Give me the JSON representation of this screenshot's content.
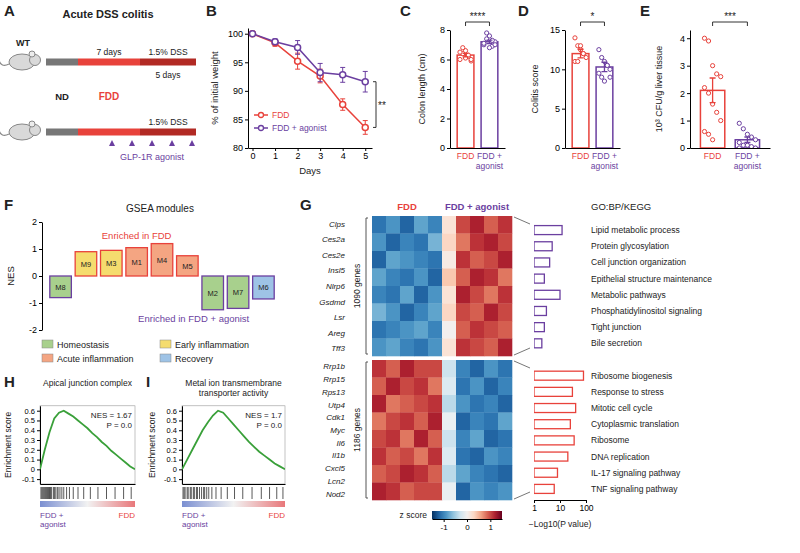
{
  "diagram": {
    "panel": "A",
    "title": "Acute DSS colitis",
    "mouse": "WT",
    "phases": [
      "ND",
      "FDD",
      "1.5% DSS"
    ],
    "durations": [
      "7 days",
      "5 days"
    ],
    "drug": "GLP-1R agonist"
  },
  "chart_data": [
    {
      "panel": "B",
      "type": "line",
      "x": [
        0,
        1,
        2,
        3,
        4,
        5
      ],
      "xlabel": "Days",
      "ylabel": "% of initial weight",
      "xlim": [
        -0.2,
        5.3
      ],
      "xticks": [
        0,
        1,
        2,
        3,
        4,
        5
      ],
      "ylim": [
        80,
        101
      ],
      "yticks": [
        80,
        85,
        90,
        95,
        100
      ],
      "legend": "bottom left",
      "annotations": [
        "**"
      ],
      "series": [
        {
          "name": "FDD",
          "color": "#e8423b",
          "marker": "circle",
          "values": [
            100,
            98.4,
            95.2,
            92.6,
            87.6,
            83.6
          ],
          "errors": [
            0,
            0.6,
            1.4,
            1.2,
            1.0,
            1.2
          ]
        },
        {
          "name": "FDD + agonist",
          "color": "#6b3fa0",
          "marker": "circle",
          "values": [
            100,
            98.6,
            97.6,
            93.2,
            92.8,
            91.6
          ],
          "errors": [
            0,
            0.5,
            1.2,
            1.6,
            1.3,
            1.8
          ]
        }
      ]
    },
    {
      "panel": "C",
      "type": "bar",
      "categories": [
        "FDD",
        "FDD + agonist"
      ],
      "values": [
        6.3,
        7.2
      ],
      "errors": [
        0.12,
        0.12
      ],
      "points": [
        [
          6.0,
          6.4,
          6.6,
          6.2,
          5.9,
          6.5,
          6.8,
          6.1,
          6.3,
          6.0
        ],
        [
          7.0,
          7.4,
          7.6,
          6.9,
          7.2,
          7.1,
          7.8,
          6.8,
          7.3,
          7.0
        ]
      ],
      "colors": [
        "#e8423b",
        "#6b3fa0"
      ],
      "ylabel": "Colon length (cm)",
      "ylim": [
        0,
        8
      ],
      "yticks": [
        0,
        2,
        4,
        6,
        8
      ],
      "annotations": [
        "****"
      ]
    },
    {
      "panel": "D",
      "type": "bar",
      "categories": [
        "FDD",
        "FDD + agonist"
      ],
      "values": [
        12,
        10.3
      ],
      "errors": [
        0.55,
        0.6
      ],
      "points": [
        [
          14,
          13,
          12.5,
          12,
          11.5,
          11,
          11,
          13,
          12
        ],
        [
          12.5,
          11.5,
          11,
          10.5,
          10,
          9.5,
          9,
          8.5,
          10.5,
          9
        ]
      ],
      "colors": [
        "#e8423b",
        "#6b3fa0"
      ],
      "ylabel": "Colitis score",
      "ylim": [
        0,
        15
      ],
      "yticks": [
        0,
        5,
        10,
        15
      ],
      "annotations": [
        "*"
      ]
    },
    {
      "panel": "E",
      "type": "bar",
      "categories": [
        "FDD",
        "FDD + agonist"
      ],
      "values": [
        2.1,
        0.3
      ],
      "errors": [
        0.45,
        0.1
      ],
      "points": [
        [
          4.0,
          3.9,
          3.0,
          2.7,
          2.6,
          2.2,
          2.0,
          1.6,
          1.3,
          1.0,
          0.6,
          0.5,
          0.3
        ],
        [
          0.9,
          0.7,
          0.5,
          0.4,
          0.3,
          0.2,
          0.1,
          0.1,
          0.05,
          0,
          0
        ]
      ],
      "colors": [
        "#e8423b",
        "#6b3fa0"
      ],
      "ylabel": "10³ CFU/g liver tissue",
      "ylim": [
        0,
        4.3
      ],
      "yticks": [
        0,
        1,
        2,
        3,
        4
      ],
      "annotations": [
        "***"
      ]
    },
    {
      "panel": "F",
      "type": "bar",
      "title": "GSEA modules",
      "categories": [
        "M8",
        "M9",
        "M3",
        "M1",
        "M4",
        "M5",
        "M2",
        "M7",
        "M6"
      ],
      "values": [
        -0.8,
        0.9,
        0.95,
        1.05,
        1.2,
        0.75,
        -1.25,
        -1.2,
        -0.85
      ],
      "colors": [
        "#a8d08d",
        "#f5dc6e",
        "#f5dc6e",
        "#f4a582",
        "#f4a582",
        "#f4a582",
        "#a8d08d",
        "#a8d08d",
        "#9ec3e6"
      ],
      "ylabel": "NES",
      "ylim": [
        -2,
        2
      ],
      "yticks": [
        -2,
        -1,
        0,
        1,
        2
      ],
      "annotations": [
        "Enriched in FDD",
        "Enriched in FDD + agonist"
      ],
      "legend": "bottom",
      "groups": [
        {
          "name": "Homeostasis",
          "color": "#a8d08d"
        },
        {
          "name": "Early inflammation",
          "color": "#f5dc6e"
        },
        {
          "name": "Acute inflammation",
          "color": "#f4a582"
        },
        {
          "name": "Recovery",
          "color": "#9ec3e6"
        }
      ]
    },
    {
      "panel": "G",
      "type": "heatmap",
      "column_groups": [
        "FDD",
        "FDD + agonist"
      ],
      "colors": [
        "#e8423b",
        "#6b3fa0"
      ],
      "row_groups": [
        "1090 genes",
        "1186 genes"
      ],
      "genes": [
        [
          "Clps",
          "Ces2a",
          "Ces2e",
          "Insl5",
          "Nlrp6",
          "Gsdmd",
          "Lsr",
          "Areg",
          "Tff3"
        ],
        [
          "Rrp1b",
          "Rrp15",
          "Rps13",
          "Utp4",
          "Cdk1",
          "Myc",
          "Il6",
          "Il1b",
          "Cxcl5",
          "Lcn2",
          "Nod2"
        ]
      ],
      "cells": [
        [
          [
            -1.1,
            -0.9,
            -1.2,
            -0.8,
            -1.0,
            0.2,
            1.0,
            1.2,
            0.9,
            1.1
          ],
          [
            -0.9,
            -1.2,
            -1.0,
            -1.1,
            -0.7,
            0.3,
            0.8,
            1.1,
            1.2,
            1.0
          ],
          [
            -1.2,
            -0.8,
            -0.9,
            -1.0,
            -1.1,
            0.1,
            1.1,
            0.9,
            1.0,
            1.2
          ],
          [
            -0.8,
            -1.0,
            -1.1,
            -0.9,
            -1.2,
            0.4,
            0.9,
            1.2,
            1.1,
            0.8
          ],
          [
            -1.0,
            -1.1,
            -0.8,
            -1.2,
            -0.9,
            0.2,
            1.2,
            1.0,
            0.8,
            1.1
          ],
          [
            -0.7,
            -0.9,
            -1.2,
            -1.0,
            -0.8,
            0.3,
            1.0,
            0.9,
            1.2,
            1.0
          ],
          [
            -1.1,
            -1.0,
            -0.9,
            -0.8,
            -1.0,
            0.0,
            0.9,
            1.1,
            1.0,
            0.9
          ],
          [
            -0.9,
            -0.8,
            -1.0,
            -1.1,
            -0.9,
            0.2,
            1.1,
            1.0,
            0.9,
            1.2
          ]
        ],
        [
          [
            1.1,
            0.9,
            1.2,
            1.0,
            1.0,
            -0.3,
            -1.0,
            -1.2,
            -0.9,
            -1.1
          ],
          [
            0.9,
            1.2,
            1.0,
            1.1,
            0.8,
            -0.2,
            -1.1,
            -0.9,
            -1.2,
            -1.0
          ],
          [
            1.2,
            0.8,
            0.9,
            1.0,
            1.1,
            -0.4,
            -0.9,
            -1.1,
            -1.0,
            -1.2
          ],
          [
            0.8,
            1.0,
            1.1,
            0.9,
            1.2,
            -0.1,
            -1.2,
            -1.0,
            -1.1,
            -0.8
          ],
          [
            1.0,
            1.1,
            0.8,
            1.2,
            0.9,
            -0.3,
            -1.0,
            -0.8,
            -1.2,
            -1.1
          ],
          [
            1.1,
            0.9,
            1.0,
            0.8,
            1.1,
            -0.2,
            -1.1,
            -1.2,
            -0.9,
            -1.0
          ],
          [
            0.9,
            1.0,
            1.2,
            1.1,
            0.9,
            -0.4,
            -0.8,
            -1.0,
            -1.1,
            -1.2
          ],
          [
            1.2,
            1.1,
            0.9,
            1.0,
            1.0,
            -0.1,
            -1.2,
            -0.9,
            -1.0,
            -0.9
          ]
        ]
      ],
      "colorbar": {
        "label": "z score",
        "range": [
          -1.5,
          1.5
        ],
        "ticks": [
          -1,
          0,
          1
        ]
      }
    },
    {
      "type": "bar",
      "orientation": "horizontal",
      "title": "GO:BP/KEGG",
      "categories": [
        "Lipid metabolic process",
        "Protein glycosylation",
        "Cell junction organization",
        "Epithelial structure maintenance",
        "Metabolic pathways",
        "Phosphatidylinositol signaling",
        "Tight junction",
        "Bile secretion",
        "Ribosome biogenesis",
        "Response to stress",
        "Mitotic cell cycle",
        "Cytoplasmic translation",
        "Ribosome",
        "DNA replication",
        "IL-17 signaling pathway",
        "TNF signaling pathway"
      ],
      "values": [
        12,
        5,
        4,
        2.5,
        10,
        3,
        2.5,
        2,
        80,
        30,
        40,
        25,
        35,
        20,
        8,
        6
      ],
      "colors": [
        "#6b3fa0",
        "#6b3fa0",
        "#6b3fa0",
        "#6b3fa0",
        "#6b3fa0",
        "#6b3fa0",
        "#6b3fa0",
        "#6b3fa0",
        "#e8423b",
        "#e8423b",
        "#e8423b",
        "#e8423b",
        "#e8423b",
        "#e8423b",
        "#e8423b",
        "#e8423b"
      ],
      "log": "x",
      "xlim": [
        1,
        100
      ],
      "xticks": [
        1,
        10,
        100
      ],
      "xlabel": "−Log10(P value)"
    },
    {
      "panel": "H",
      "type": "line",
      "title": "Apical junction complex",
      "x": [
        0,
        5,
        10,
        15,
        20,
        25,
        30,
        35,
        40,
        45,
        50,
        55,
        60,
        65,
        70,
        75,
        80,
        85,
        90,
        95,
        100
      ],
      "values": [
        0,
        0.2,
        0.38,
        0.52,
        0.58,
        0.6,
        0.57,
        0.54,
        0.5,
        0.46,
        0.42,
        0.37,
        0.33,
        0.28,
        0.24,
        0.19,
        0.15,
        0.11,
        0.07,
        0.03,
        0
      ],
      "hits": [
        1,
        2,
        3,
        4,
        5,
        6,
        7,
        8,
        9,
        10,
        11,
        12,
        14,
        15,
        16,
        18,
        19,
        21,
        23,
        25,
        28,
        31,
        35,
        40,
        46,
        53,
        61,
        70,
        79,
        88,
        96
      ],
      "color": "#3aa03a",
      "ylabel": "Enrichment score",
      "xlim": [
        0,
        100
      ],
      "ylim": [
        -0.15,
        0.65
      ],
      "yticks": [
        -0.1,
        0,
        0.1,
        0.2,
        0.3,
        0.4,
        0.5,
        0.6
      ],
      "tick_labels": "y",
      "annotations": [
        "NES = 1.67",
        "P = 0.0"
      ],
      "rank_labels": [
        "FDD + agonist",
        "FDD"
      ]
    },
    {
      "panel": "I",
      "type": "line",
      "title": "Metal ion transmembrane transporter activity",
      "x": [
        0,
        5,
        10,
        15,
        20,
        25,
        30,
        35,
        40,
        45,
        50,
        55,
        60,
        65,
        70,
        75,
        80,
        85,
        90,
        95,
        100
      ],
      "values": [
        0,
        0.1,
        0.2,
        0.3,
        0.4,
        0.48,
        0.55,
        0.6,
        0.58,
        0.52,
        0.46,
        0.4,
        0.34,
        0.28,
        0.23,
        0.18,
        0.14,
        0.1,
        0.06,
        0.03,
        0
      ],
      "hits": [
        1,
        2,
        3,
        5,
        6,
        8,
        9,
        11,
        12,
        14,
        15,
        17,
        19,
        21,
        22,
        24,
        26,
        29,
        33,
        38,
        44,
        51,
        59,
        68,
        77,
        85,
        92,
        98
      ],
      "color": "#3aa03a",
      "ylabel": "Enrichment score",
      "xlim": [
        0,
        100
      ],
      "ylim": [
        -0.15,
        0.65
      ],
      "yticks": [
        -0.1,
        0,
        0.1,
        0.2,
        0.3,
        0.4,
        0.5,
        0.6
      ],
      "tick_labels": "y",
      "annotations": [
        "NES = 1.7",
        "P = 0.0"
      ],
      "rank_labels": [
        "FDD + agonist",
        "FDD"
      ]
    }
  ]
}
